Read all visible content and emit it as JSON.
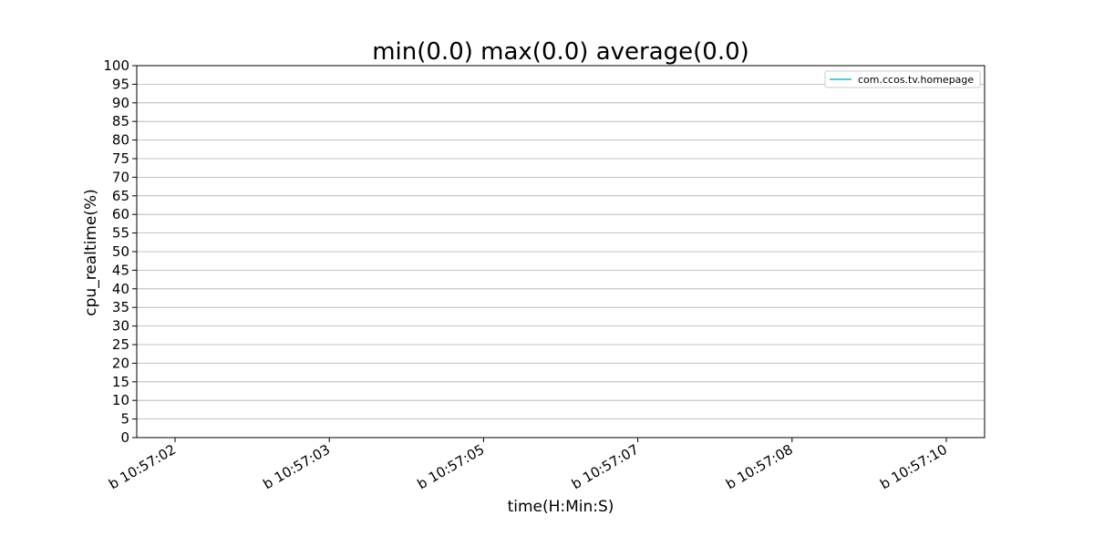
{
  "chart_data": {
    "type": "line",
    "title": "min(0.0) max(0.0) average(0.0)",
    "xlabel": "time(H:Min:S)",
    "ylabel": "cpu_realtime(%)",
    "ylim": [
      0,
      100
    ],
    "ytick_step": 5,
    "x_ticks": [
      "b 10:57:02",
      "b 10:57:03",
      "b 10:57:05",
      "b 10:57:07",
      "b 10:57:08",
      "b 10:57:10"
    ],
    "grid": "horizontal",
    "legend_position": "top-right",
    "series": [
      {
        "name": "com.ccos.tv.homepage",
        "color": "#17becf",
        "values": []
      }
    ]
  }
}
